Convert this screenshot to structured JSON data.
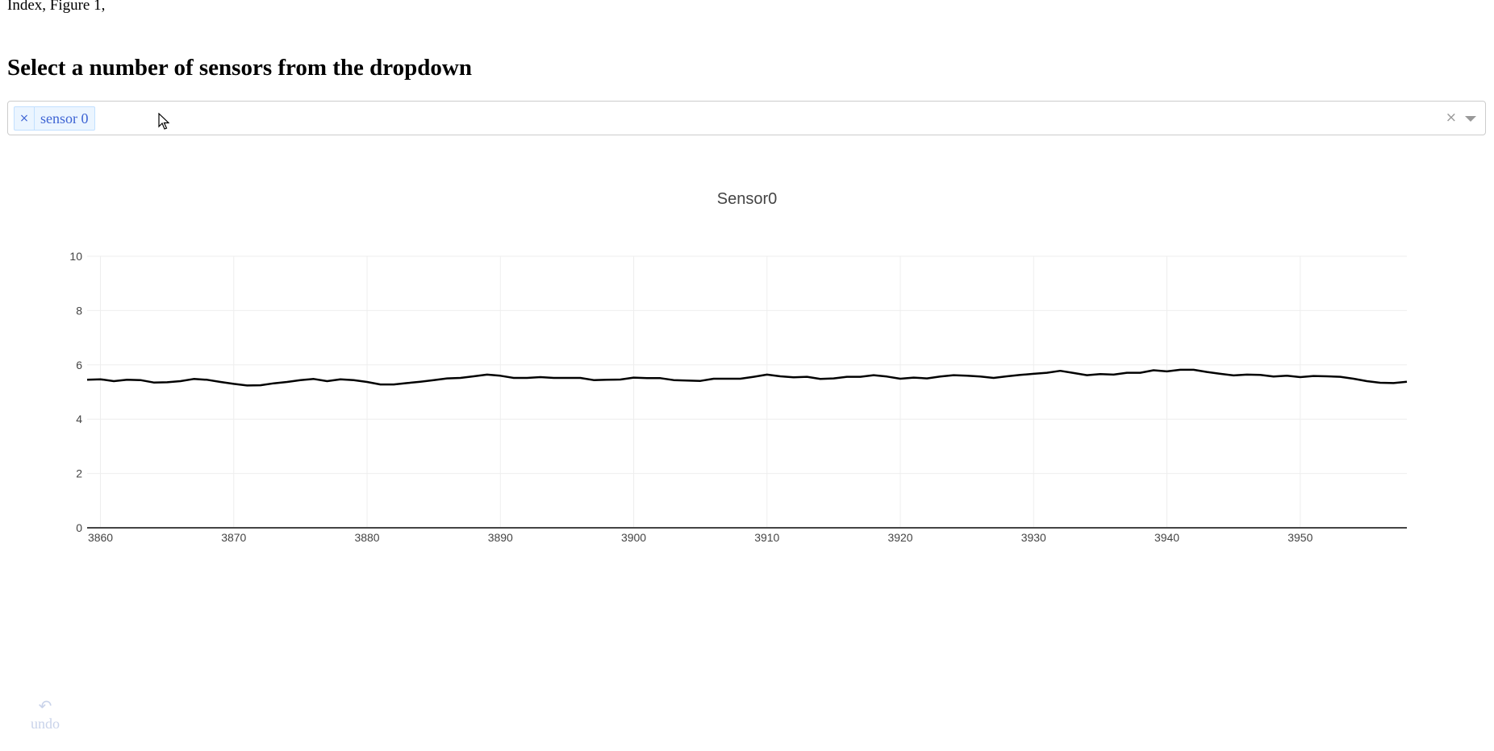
{
  "header": {
    "index_text": "Index, Figure 1,",
    "title": "Select a number of sensors from the dropdown"
  },
  "dropdown": {
    "selected": [
      {
        "label": "sensor 0",
        "remove_glyph": "×"
      }
    ],
    "clear_glyph": "×",
    "arrow_icon": "caret-down"
  },
  "chart_data": {
    "type": "line",
    "title": "Sensor0",
    "xlabel": "",
    "ylabel": "",
    "xlim": [
      3859,
      3958
    ],
    "ylim": [
      0,
      10
    ],
    "x_ticks": [
      3860,
      3870,
      3880,
      3890,
      3900,
      3910,
      3920,
      3930,
      3940,
      3950
    ],
    "y_ticks": [
      0,
      2,
      4,
      6,
      8,
      10
    ],
    "grid": true,
    "line_color": "#000000",
    "x_start": 3859,
    "x_step": 1,
    "values": [
      5.45,
      5.47,
      5.4,
      5.45,
      5.44,
      5.35,
      5.36,
      5.4,
      5.48,
      5.45,
      5.37,
      5.3,
      5.24,
      5.25,
      5.32,
      5.37,
      5.44,
      5.48,
      5.4,
      5.47,
      5.44,
      5.37,
      5.28,
      5.28,
      5.33,
      5.38,
      5.44,
      5.5,
      5.52,
      5.58,
      5.64,
      5.6,
      5.52,
      5.52,
      5.55,
      5.52,
      5.52,
      5.52,
      5.44,
      5.45,
      5.46,
      5.53,
      5.51,
      5.51,
      5.44,
      5.42,
      5.41,
      5.49,
      5.49,
      5.49,
      5.56,
      5.64,
      5.58,
      5.54,
      5.56,
      5.48,
      5.5,
      5.56,
      5.56,
      5.62,
      5.57,
      5.49,
      5.53,
      5.5,
      5.57,
      5.62,
      5.6,
      5.57,
      5.52,
      5.58,
      5.63,
      5.67,
      5.71,
      5.78,
      5.7,
      5.62,
      5.66,
      5.64,
      5.71,
      5.71,
      5.8,
      5.76,
      5.82,
      5.82,
      5.74,
      5.67,
      5.61,
      5.64,
      5.63,
      5.57,
      5.6,
      5.55,
      5.59,
      5.58,
      5.56,
      5.49,
      5.4,
      5.34,
      5.33,
      5.38
    ]
  },
  "undo": {
    "icon": "undo-icon",
    "glyph": "↶",
    "label": "undo"
  }
}
